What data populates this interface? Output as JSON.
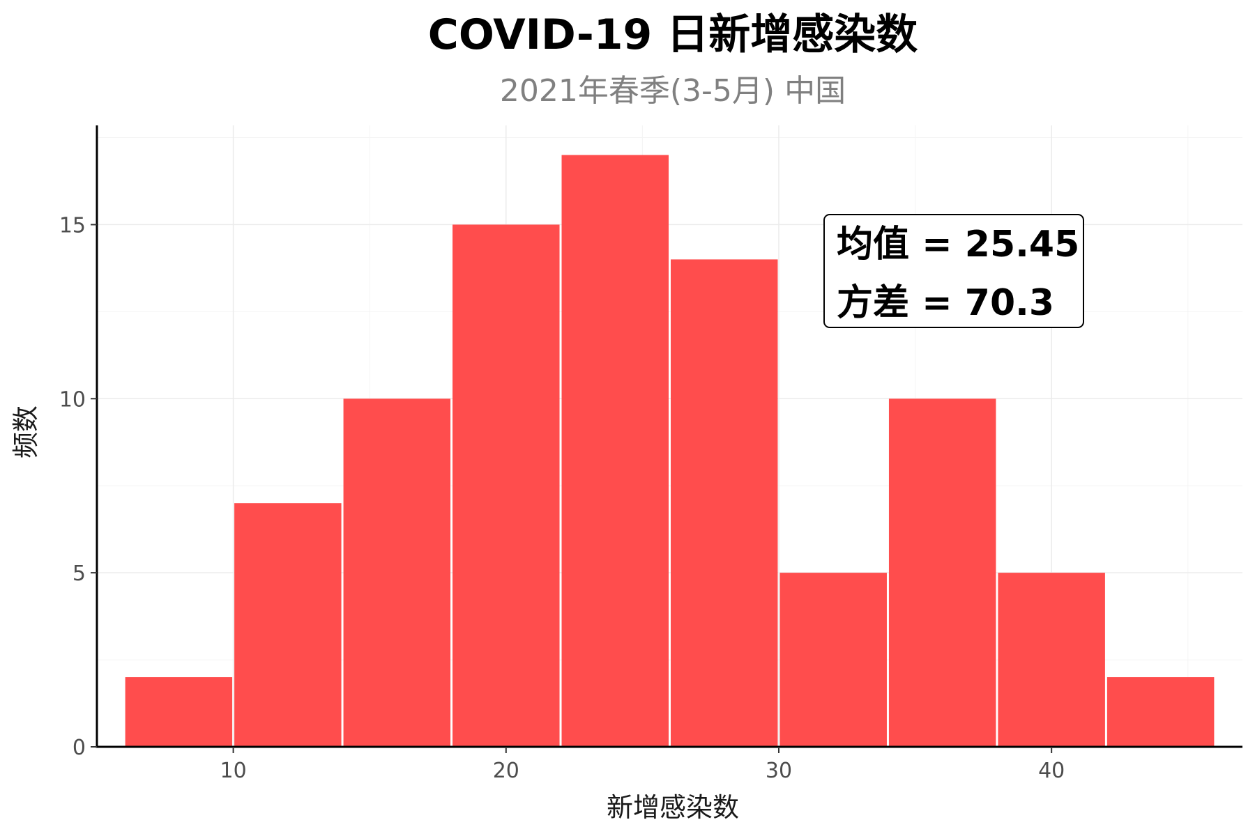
{
  "chart_data": {
    "type": "bar",
    "title": "COVID-19 日新增感染数",
    "subtitle": "2021年春季(3-5月) 中国",
    "xlabel": "新增感染数",
    "ylabel": "频数",
    "bin_width": 4,
    "bins": [
      {
        "start": 6,
        "end": 10,
        "count": 2
      },
      {
        "start": 10,
        "end": 14,
        "count": 7
      },
      {
        "start": 14,
        "end": 18,
        "count": 10
      },
      {
        "start": 18,
        "end": 22,
        "count": 15
      },
      {
        "start": 22,
        "end": 26,
        "count": 17
      },
      {
        "start": 26,
        "end": 30,
        "count": 14
      },
      {
        "start": 30,
        "end": 34,
        "count": 5
      },
      {
        "start": 34,
        "end": 38,
        "count": 10
      },
      {
        "start": 38,
        "end": 42,
        "count": 5
      },
      {
        "start": 42,
        "end": 46,
        "count": 2
      }
    ],
    "xlim": [
      5.0,
      47.0
    ],
    "ylim": [
      0,
      17.85
    ],
    "x_ticks": [
      10,
      20,
      30,
      40
    ],
    "y_ticks": [
      0,
      5,
      10,
      15
    ],
    "grid": true,
    "bar_color": "#ff4d4d",
    "annotation": {
      "lines": [
        "均值 = 25.45",
        "方差 = 70.3"
      ]
    }
  }
}
